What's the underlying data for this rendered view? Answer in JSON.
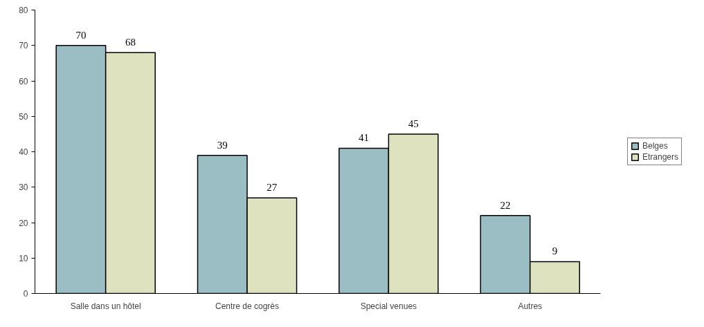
{
  "chart_data": {
    "type": "bar",
    "categories": [
      "Salle dans un hôtel",
      "Centre de cogrès",
      "Special venues",
      "Autres"
    ],
    "series": [
      {
        "name": "Belges",
        "color": "#9bbdc4",
        "values": [
          70,
          39,
          41,
          22
        ]
      },
      {
        "name": "Etrangers",
        "color": "#dfe2bf",
        "values": [
          68,
          27,
          45,
          9
        ]
      }
    ],
    "ylim": [
      0,
      80
    ],
    "yticks": [
      0,
      10,
      20,
      30,
      40,
      50,
      60,
      70,
      80
    ],
    "grid": false,
    "legend": "right",
    "data_labels": true
  }
}
